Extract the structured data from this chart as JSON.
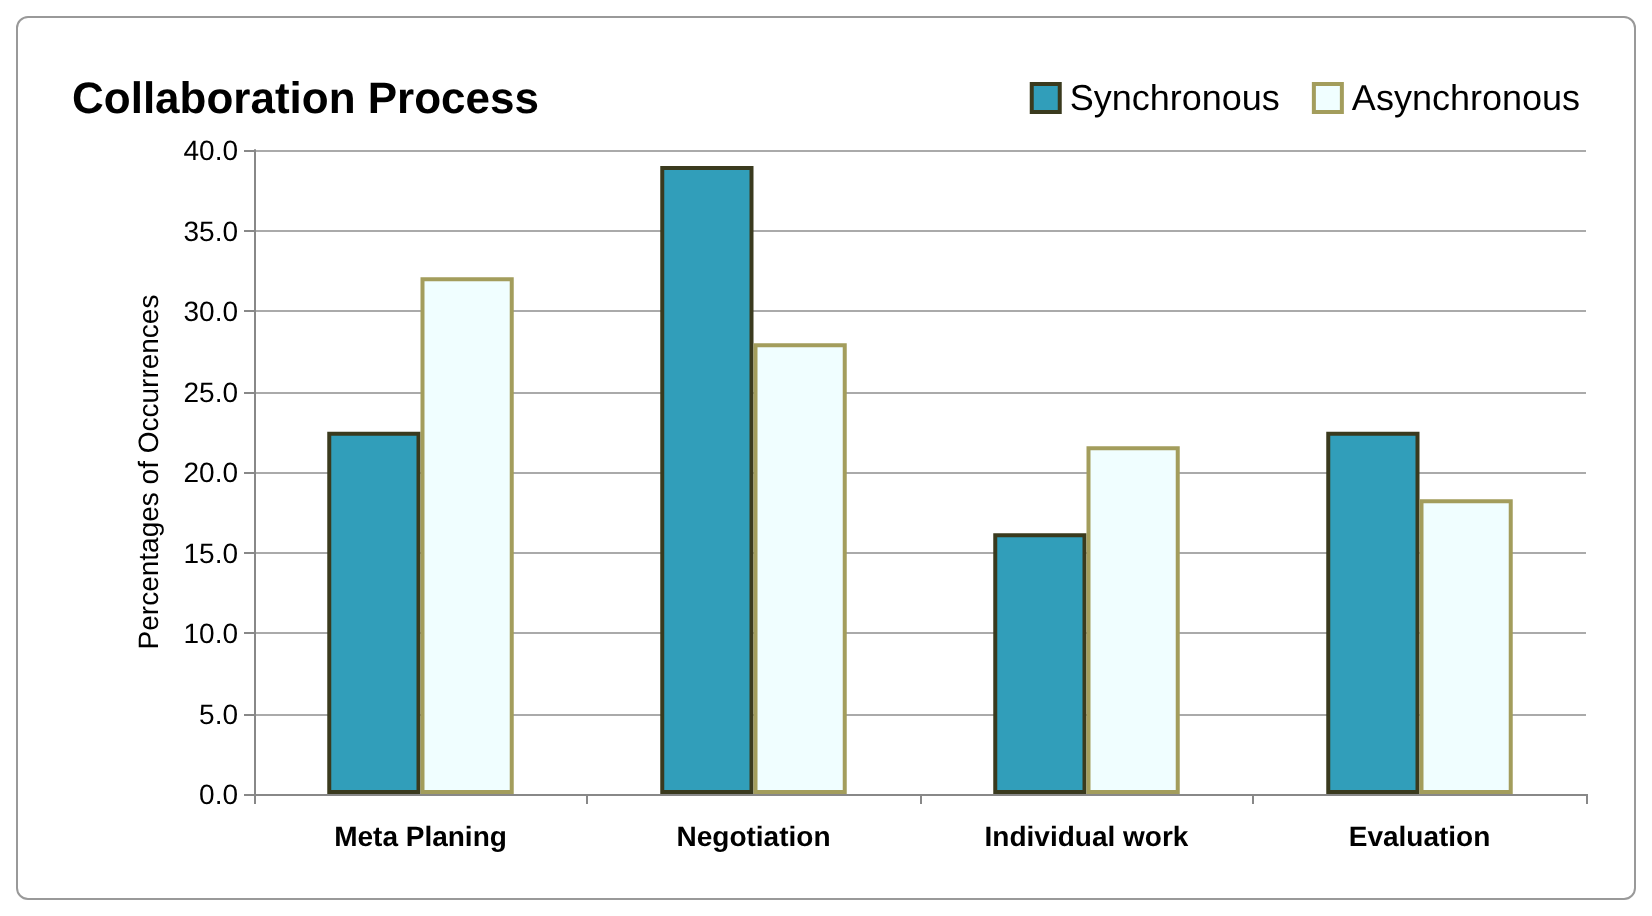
{
  "chart_data": {
    "type": "bar",
    "title": "Collaboration Process",
    "ylabel": "Percentages of Occurrences",
    "categories": [
      "Meta Planing",
      "Negotiation",
      "Individual work",
      "Evaluation"
    ],
    "series": [
      {
        "name": "Synchronous",
        "color": "#319eba",
        "values": [
          22.5,
          39.0,
          16.2,
          22.5
        ]
      },
      {
        "name": "Asynchronous",
        "color": "#f0feff",
        "values": [
          32.1,
          28.0,
          21.6,
          18.3
        ]
      }
    ],
    "ylim": [
      0,
      40
    ],
    "yticks": [
      {
        "value": 0,
        "label": "0.0"
      },
      {
        "value": 5,
        "label": "5.0"
      },
      {
        "value": 10,
        "label": "10.0"
      },
      {
        "value": 15,
        "label": "15.0"
      },
      {
        "value": 20,
        "label": "20.0"
      },
      {
        "value": 25,
        "label": "25.0"
      },
      {
        "value": 30,
        "label": "30.0"
      },
      {
        "value": 35,
        "label": "35.0"
      },
      {
        "value": 40,
        "label": "40.0"
      }
    ],
    "grid": "y",
    "legend": "top right"
  }
}
